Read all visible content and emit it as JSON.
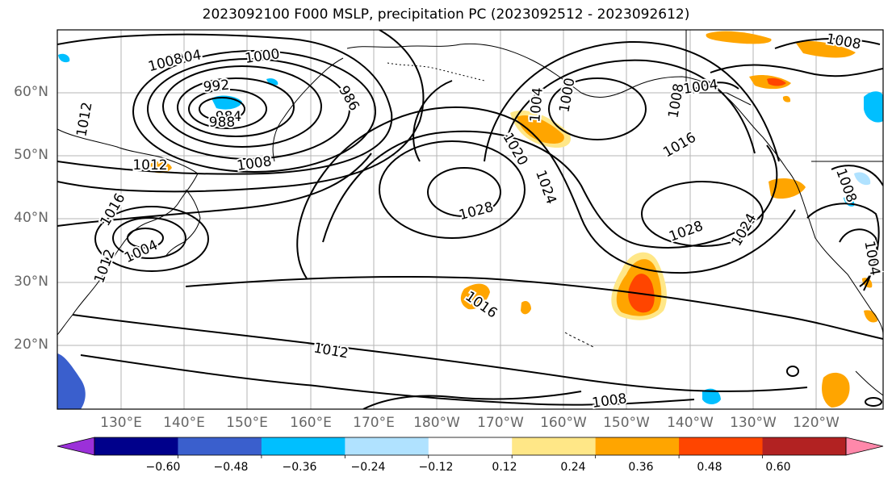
{
  "title": "2023092100 F000 MSLP, precipitation PC (2023092512 - 2023092612)",
  "lat_labels": [
    "60°N",
    "50°N",
    "40°N",
    "30°N",
    "20°N"
  ],
  "lon_labels": [
    "130°E",
    "140°E",
    "150°E",
    "160°E",
    "170°E",
    "180°W",
    "170°W",
    "160°W",
    "150°W",
    "140°W",
    "130°W",
    "120°W"
  ],
  "isobar_labels": [
    "1004",
    "1008",
    "1000",
    "992",
    "984",
    "988",
    "986",
    "1012",
    "1008",
    "1012",
    "1016",
    "1004",
    "1008",
    "1012",
    "1020",
    "1024",
    "1028",
    "1000",
    "1004",
    "1016",
    "1008",
    "1028",
    "1024",
    "1016",
    "1012",
    "1008",
    "1004",
    "1008",
    "1004"
  ],
  "colorbar": {
    "ticks": [
      "−0.60",
      "−0.48",
      "−0.36",
      "−0.24",
      "−0.12",
      "0.12",
      "0.24",
      "0.36",
      "0.48",
      "0.60"
    ],
    "colors": [
      "#9b30d9",
      "#00008b",
      "#3a5fcd",
      "#00bfff",
      "#b0e2ff",
      "#ffffff",
      "#ffe787",
      "#ffa500",
      "#ff4500",
      "#b22222",
      "#ff88aa"
    ]
  }
}
